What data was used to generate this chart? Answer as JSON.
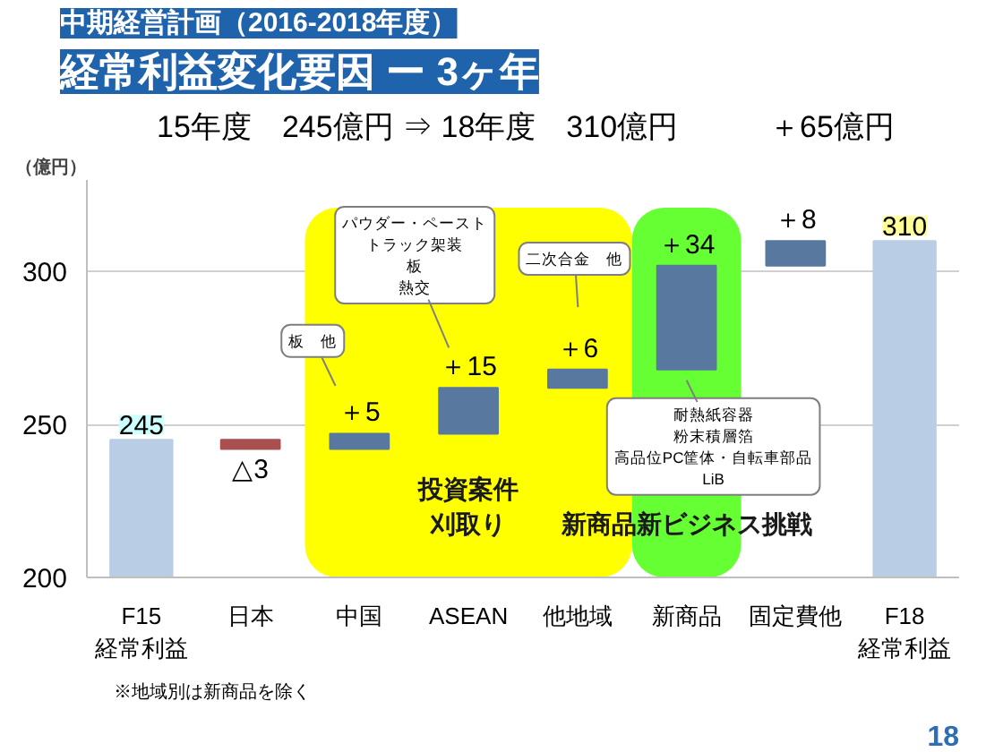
{
  "chart_data": {
    "type": "bar",
    "subtitle": "中期経営計画（2016-2018年度）",
    "title": "経常利益変化要因 ー 3ヶ年",
    "ylabel": "（億円）",
    "categories": [
      "F15\n経常利益",
      "日本",
      "中国",
      "ASEAN",
      "他地域",
      "新商品",
      "固定費他",
      "F18\n経常利益"
    ],
    "values": [
      245,
      -3,
      5,
      15,
      6,
      34,
      8,
      310
    ],
    "base": [
      null,
      245,
      242,
      247,
      262,
      268,
      302,
      null
    ],
    "colors": [
      "#b9cde5",
      "#a94f4f",
      "#5878a0",
      "#5878a0",
      "#5878a0",
      "#5878a0",
      "#5878a0",
      "#b9cde5"
    ],
    "value_labels": [
      "245",
      "△3",
      "＋5",
      "＋15",
      "＋6",
      "＋34",
      "＋8",
      "310"
    ],
    "ylim": [
      200,
      330
    ],
    "yticks": [
      200,
      250,
      300
    ],
    "grid": "y",
    "bands": [
      {
        "axis": "x",
        "from": "中国",
        "to": "他地域",
        "label": "投資案件刈取り",
        "color": "#ffff00"
      },
      {
        "axis": "x",
        "from": "新商品",
        "to": "新商品",
        "label": "新商品新ビジネス挑戦",
        "color": "#66ff33"
      }
    ],
    "annotations": [
      "15年度　245億円 ⇒ 18年度　310億円　　　＋65億円",
      "板　他",
      "パウダー・ペーストトラック架装板熱交",
      "二次合金　他",
      {
        "text": "耐熱紙容器粉末積層箔高品位PC筐体・自転車部品LiB",
        "x": "新商品",
        "y": 268
      },
      "※地域別は新商品を除く",
      "18"
    ]
  }
}
